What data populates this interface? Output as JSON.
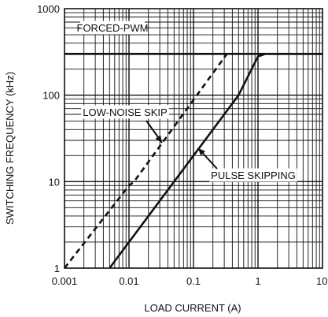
{
  "chart_data": {
    "type": "line",
    "xscale": "log",
    "yscale": "log",
    "xlim": [
      0.001,
      10
    ],
    "ylim": [
      1,
      1000
    ],
    "grid": true,
    "xlabel": "LOAD CURRENT (A)",
    "ylabel": "SWITCHING FREQUENCY (kHz)",
    "x_ticks": [
      "0.001",
      "0.01",
      "0.1",
      "1",
      "10"
    ],
    "y_ticks": [
      "1",
      "10",
      "100",
      "1000"
    ],
    "series": [
      {
        "key": "forced-pwm",
        "style": "solid",
        "points": [
          [
            0.001,
            300
          ],
          [
            10,
            300
          ]
        ]
      },
      {
        "key": "low-noise-skip",
        "style": "dashed",
        "points": [
          [
            0.001,
            1
          ],
          [
            0.01,
            9
          ],
          [
            0.012,
            10
          ],
          [
            0.33,
            300
          ],
          [
            0.33,
            300
          ]
        ]
      },
      {
        "key": "pulse-skipping",
        "style": "solid",
        "points": [
          [
            0.005,
            1
          ],
          [
            0.5,
            100
          ],
          [
            1.0,
            280
          ],
          [
            1.3,
            300
          ],
          [
            10,
            300
          ]
        ]
      }
    ],
    "annotations": [
      {
        "key": "forced-pwm-label",
        "text": "FORCED-PWM"
      },
      {
        "key": "low-noise-skip-label",
        "text": "LOW-NOISE SKIP"
      },
      {
        "key": "pulse-skipping-label",
        "text": "PULSE SKIPPING"
      }
    ],
    "colors": {
      "line": "#111111",
      "grid": "#111111",
      "background": "#ffffff"
    }
  }
}
